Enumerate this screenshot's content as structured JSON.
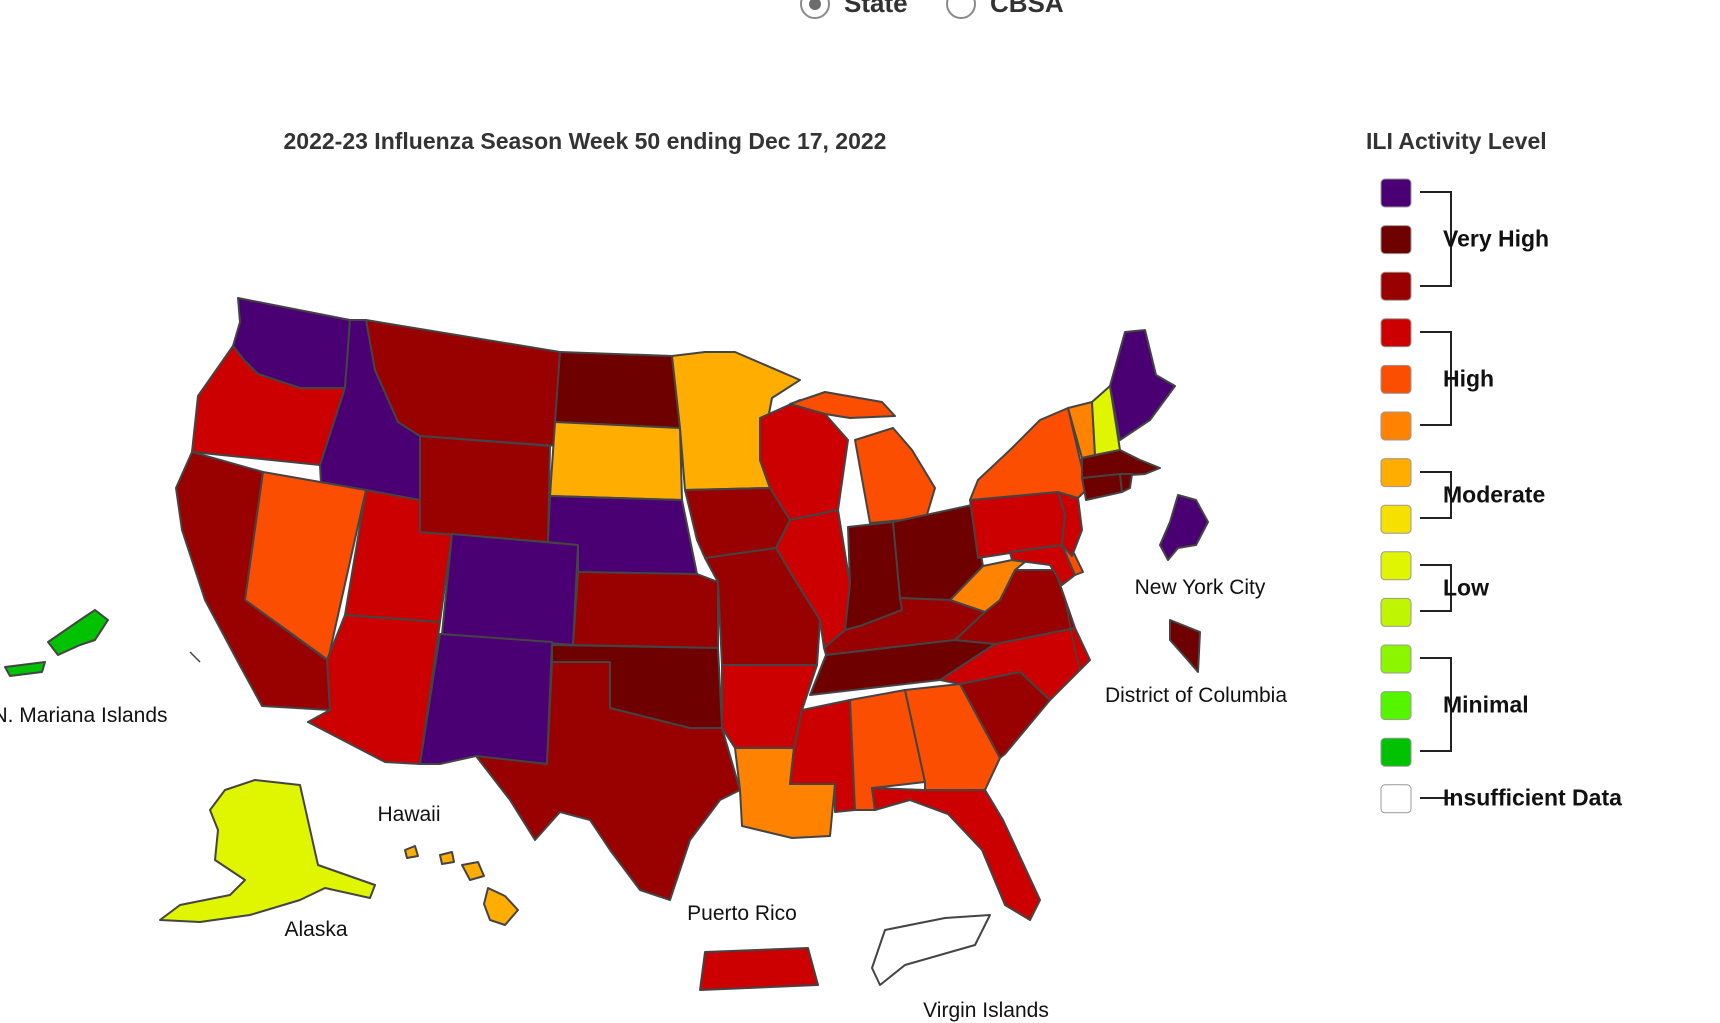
{
  "view_toggle": {
    "options": [
      {
        "label": "State",
        "selected": true
      },
      {
        "label": "CBSA",
        "selected": false
      }
    ]
  },
  "map": {
    "title": "2022-23 Influenza Season Week 50 ending Dec 17, 2022",
    "territory_labels": {
      "new_york_city": "New York City",
      "district_of_columbia": "District of Columbia",
      "n_mariana_islands": "N. Mariana Islands",
      "hawaii": "Hawaii",
      "alaska": "Alaska",
      "puerto_rico": "Puerto Rico",
      "virgin_islands": "Virgin Islands"
    },
    "regions": {
      "washington": "very-high-13",
      "oregon": "high-10",
      "california": "very-high-11",
      "idaho": "very-high-13",
      "nevada": "high-9",
      "utah": "high-10",
      "arizona": "high-10",
      "montana": "very-high-11",
      "wyoming": "very-high-11",
      "colorado": "very-high-13",
      "new_mexico": "very-high-13",
      "north_dakota": "very-high-12",
      "south_dakota": "moderate-7",
      "nebraska": "very-high-13",
      "kansas": "very-high-11",
      "oklahoma": "very-high-12",
      "texas": "very-high-11",
      "minnesota": "moderate-7",
      "iowa": "very-high-11",
      "missouri": "very-high-11",
      "arkansas": "high-10",
      "louisiana": "high-8",
      "wisconsin": "high-10",
      "illinois": "high-10",
      "michigan": "high-9",
      "indiana": "very-high-12",
      "ohio": "very-high-12",
      "kentucky": "very-high-11",
      "tennessee": "very-high-12",
      "mississippi": "high-10",
      "alabama": "high-9",
      "georgia": "high-9",
      "florida": "high-10",
      "south_carolina": "very-high-11",
      "north_carolina": "high-10",
      "virginia": "very-high-11",
      "west_virginia": "high-8",
      "maryland": "high-10",
      "delaware": "high-9",
      "pennsylvania": "high-10",
      "new_jersey": "high-10",
      "new_york": "high-9",
      "vermont": "high-8",
      "new_hampshire": "low-5",
      "maine": "very-high-13",
      "massachusetts": "very-high-12",
      "connecticut": "very-high-12",
      "rhode_island": "very-high-12",
      "new_york_city": "very-high-13",
      "district_of_columbia": "very-high-12",
      "alaska": "low-5",
      "hawaii": "moderate-7",
      "puerto_rico": "high-10",
      "virgin_islands": "insufficient-data",
      "n_mariana_islands": "minimal-1"
    }
  },
  "legend": {
    "title": "ILI Activity Level",
    "group_labels": {
      "very_high": "Very High",
      "high": "High",
      "moderate": "Moderate",
      "low": "Low",
      "minimal": "Minimal",
      "insufficient": "Insufficient Data"
    },
    "levels": [
      {
        "id": "very-high-13",
        "color": "#4a0073"
      },
      {
        "id": "very-high-12",
        "color": "#6e0000"
      },
      {
        "id": "very-high-11",
        "color": "#990000"
      },
      {
        "id": "high-10",
        "color": "#cc0000"
      },
      {
        "id": "high-9",
        "color": "#fc4e00"
      },
      {
        "id": "high-8",
        "color": "#ff8200"
      },
      {
        "id": "moderate-7",
        "color": "#ffad00"
      },
      {
        "id": "moderate-6",
        "color": "#f5e000"
      },
      {
        "id": "low-5",
        "color": "#e0f500"
      },
      {
        "id": "low-4",
        "color": "#bff500"
      },
      {
        "id": "minimal-3",
        "color": "#8cf500"
      },
      {
        "id": "minimal-2",
        "color": "#55f500"
      },
      {
        "id": "minimal-1",
        "color": "#00c200"
      },
      {
        "id": "insufficient-data",
        "color": "#ffffff"
      }
    ]
  }
}
